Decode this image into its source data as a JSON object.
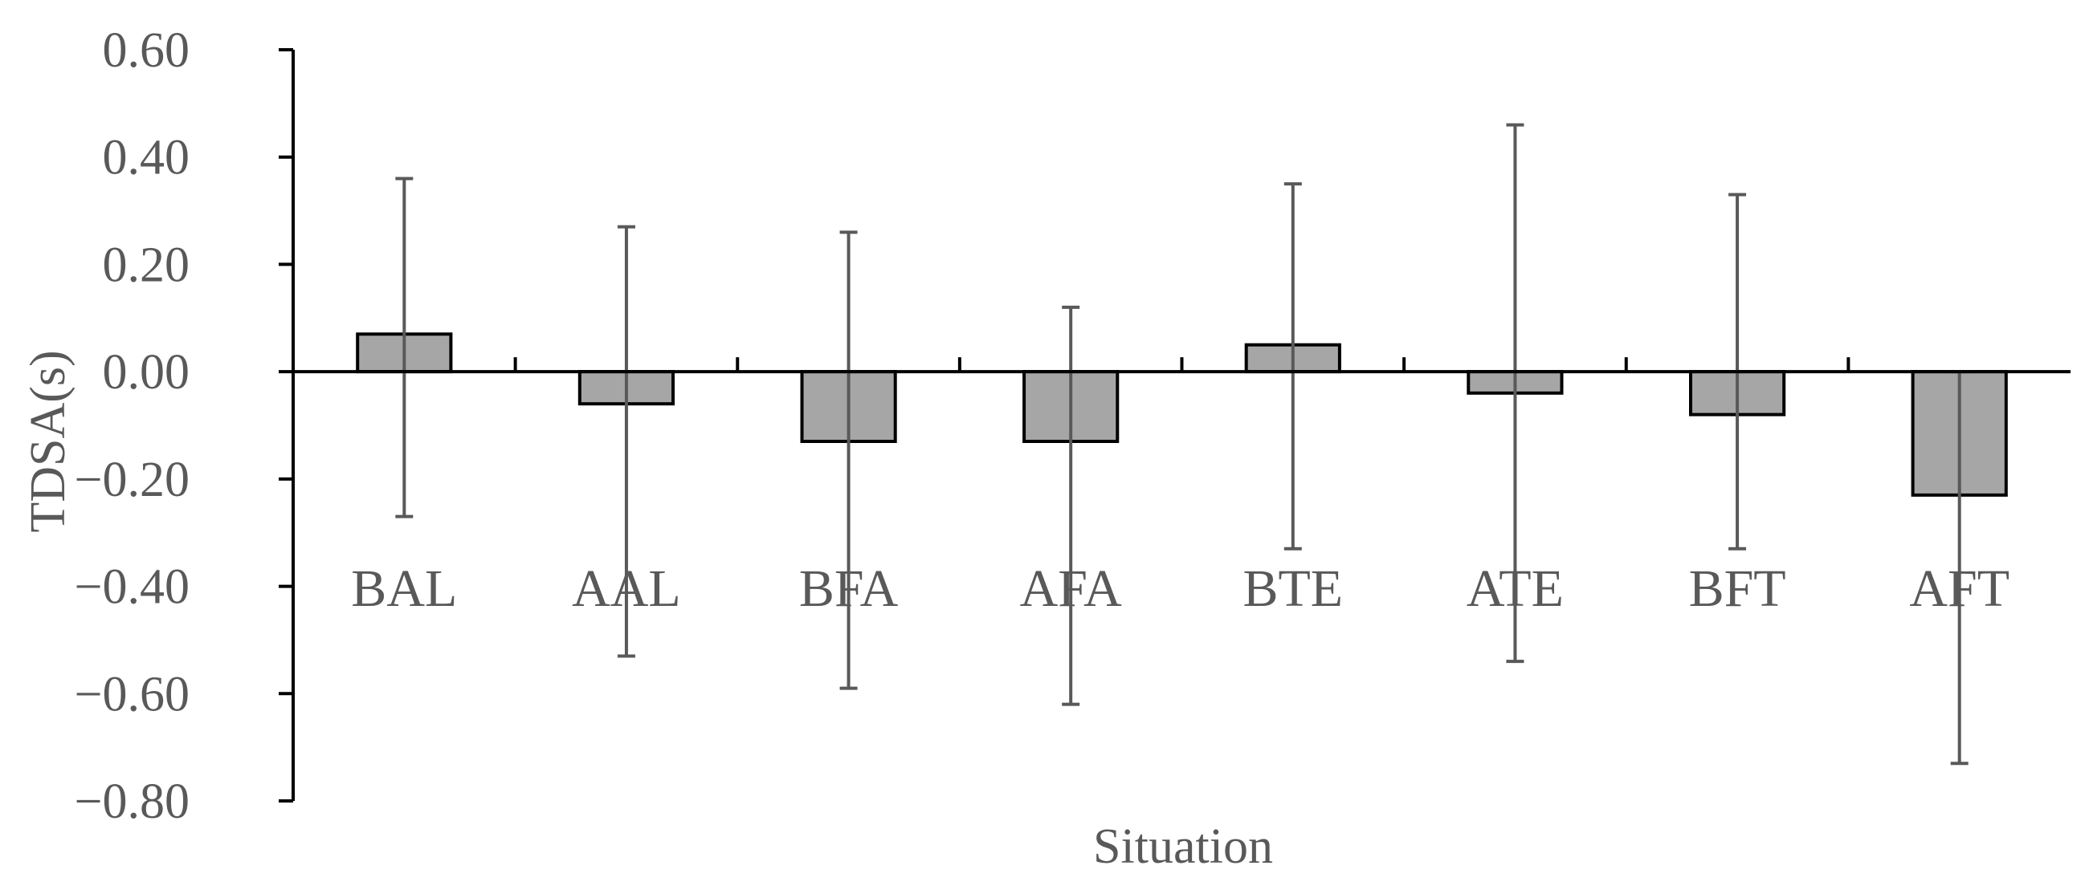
{
  "chart_data": {
    "type": "bar",
    "categories": [
      "BAL",
      "AAL",
      "BFA",
      "AFA",
      "BTE",
      "ATE",
      "BFT",
      "AFT"
    ],
    "values": [
      0.07,
      -0.06,
      -0.13,
      -0.13,
      0.05,
      -0.04,
      -0.08,
      -0.23
    ],
    "error_bars": {
      "lower": [
        -0.27,
        -0.53,
        -0.59,
        -0.62,
        -0.33,
        -0.54,
        -0.33,
        -0.73
      ],
      "upper": [
        0.36,
        0.27,
        0.26,
        0.12,
        0.35,
        0.46,
        0.33,
        0.0
      ]
    },
    "xlabel": "Situation",
    "ylabel": "TDSA(s)",
    "ylim": [
      -0.8,
      0.6
    ],
    "yticks": [
      0.6,
      0.4,
      0.2,
      0.0,
      -0.2,
      -0.4,
      -0.6,
      -0.8
    ],
    "ytick_labels": [
      "0.60",
      "0.40",
      "0.20",
      "0.00",
      "−0.20",
      "−0.40",
      "−0.60",
      "−0.80"
    ],
    "grid": false,
    "legend": "none",
    "colors": {
      "bar_fill": "#a6a6a6",
      "bar_stroke": "#000000",
      "axis": "#000000",
      "error_bar": "#595959",
      "text": "#595959"
    }
  }
}
